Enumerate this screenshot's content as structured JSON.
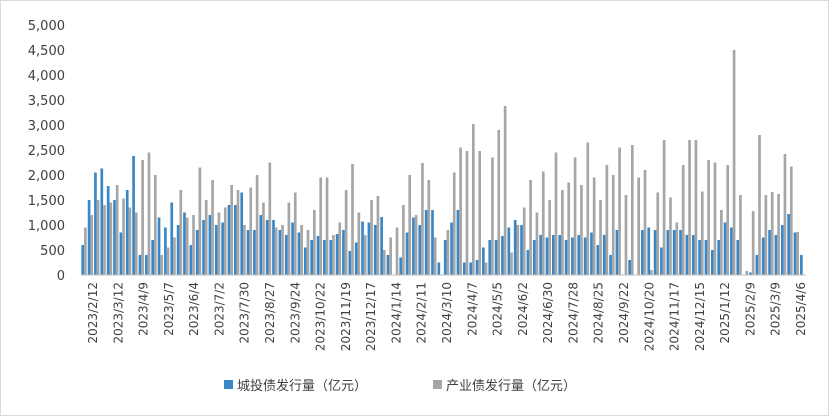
{
  "chart_data": {
    "type": "bar",
    "title": "",
    "xlabel": "",
    "ylabel": "",
    "ylim": [
      0,
      5000
    ],
    "yticks": [
      "0",
      "500",
      "1,000",
      "1,500",
      "2,000",
      "2,500",
      "3,000",
      "3,500",
      "4,000",
      "4,500",
      "5,000"
    ],
    "xtick_labels": [
      "2023/2/12",
      "2023/3/12",
      "2023/4/9",
      "2023/5/7",
      "2023/6/4",
      "2023/7/2",
      "2023/7/30",
      "2023/8/27",
      "2023/9/24",
      "2023/10/22",
      "2023/11/19",
      "2023/12/17",
      "2024/1/14",
      "2024/2/11",
      "2024/3/10",
      "2024/4/7",
      "2024/5/5",
      "2024/6/2",
      "2024/6/30",
      "2024/7/28",
      "2024/8/25",
      "2024/9/22",
      "2024/10/20",
      "2024/11/17",
      "2024/12/15",
      "2025/1/12",
      "2025/2/9",
      "2025/3/9",
      "2025/4/6"
    ],
    "grid": false,
    "legend_position": "bottom",
    "series": [
      {
        "name": "城投债发行量（亿元）",
        "color": "#3a87c8",
        "values": [
          600,
          1500,
          2050,
          2130,
          1780,
          1500,
          850,
          1700,
          2380,
          400,
          400,
          700,
          1150,
          950,
          1450,
          1000,
          1250,
          600,
          900,
          1100,
          1200,
          1000,
          1050,
          1400,
          1400,
          1650,
          900,
          900,
          1200,
          1100,
          1100,
          900,
          800,
          1050,
          850,
          550,
          700,
          780,
          700,
          700,
          820,
          900,
          480,
          650,
          1070,
          1050,
          1000,
          1160,
          400,
          0,
          350,
          850,
          1150,
          1000,
          1300,
          1300,
          250,
          700,
          1050,
          1300,
          250,
          250,
          300,
          550,
          700,
          700,
          780,
          950,
          1100,
          1000,
          500,
          700,
          800,
          750,
          800,
          800,
          700,
          750,
          800,
          750,
          850,
          600,
          800,
          400,
          900,
          0,
          300,
          0,
          900,
          950,
          900,
          550,
          900,
          900,
          900,
          800,
          800,
          700,
          700,
          500,
          700,
          1050,
          950,
          700,
          0,
          50,
          400,
          750,
          900,
          800,
          1000,
          1220,
          850,
          400
        ]
      },
      {
        "name": "产业债发行量（亿元）",
        "color": "#a6a6a6",
        "values": [
          950,
          1200,
          1500,
          1400,
          1450,
          1800,
          1530,
          1350,
          1250,
          2300,
          2450,
          2000,
          400,
          550,
          750,
          1700,
          1150,
          1200,
          2150,
          1500,
          1900,
          1250,
          1350,
          1800,
          1700,
          1000,
          1750,
          2000,
          1450,
          2250,
          950,
          1000,
          1450,
          1650,
          1000,
          900,
          1300,
          1950,
          1950,
          800,
          1050,
          1700,
          2220,
          1250,
          800,
          1500,
          1580,
          500,
          750,
          950,
          1400,
          2000,
          1200,
          2240,
          1900,
          750,
          0,
          900,
          2050,
          2550,
          2480,
          3020,
          2480,
          250,
          2350,
          2900,
          3380,
          450,
          1000,
          1350,
          1900,
          1250,
          2070,
          1500,
          2450,
          1700,
          1850,
          2350,
          1800,
          2650,
          1950,
          1500,
          2200,
          2000,
          2550,
          1600,
          2600,
          1950,
          2100,
          100,
          1650,
          2700,
          1550,
          1050,
          2200,
          2700,
          2700,
          1670,
          2300,
          2250,
          1300,
          2200,
          4500,
          1600,
          80,
          1280,
          2800,
          1600,
          1660,
          1620,
          2420,
          2170,
          860
        ]
      }
    ]
  }
}
